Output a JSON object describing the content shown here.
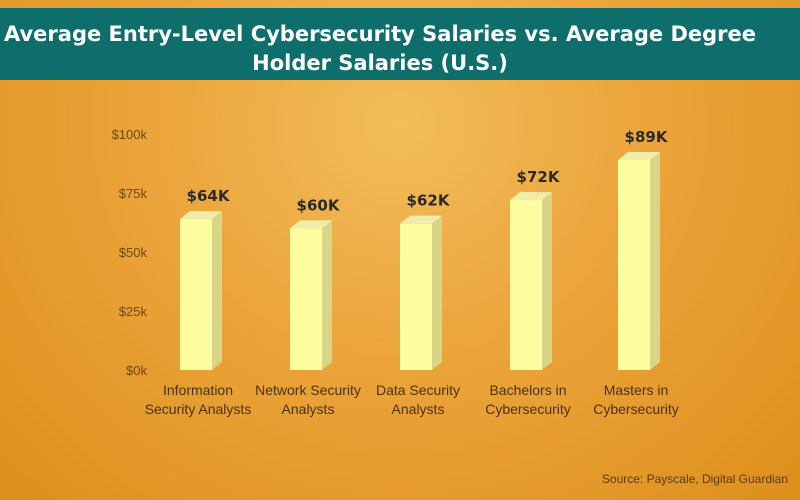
{
  "title_line1": "Average Entry-Level Cybersecurity Salaries vs. Average Degree",
  "title_line2": "Holder Salaries (U.S.)",
  "source": "Source: Payscale, Digital Guardian",
  "colors": {
    "title_bar": "#0e6e6c",
    "bar_front": "#fdfda0",
    "bar_side": "#d8d488",
    "bar_top": "#f0eda8"
  },
  "chart_data": {
    "type": "bar",
    "categories": [
      [
        "Information",
        "Security Analysts"
      ],
      [
        "Network Security",
        "Analysts"
      ],
      [
        "Data Security",
        "Analysts"
      ],
      [
        "Bachelors in",
        "Cybersecurity"
      ],
      [
        "Masters in",
        "Cybersecurity"
      ]
    ],
    "values": [
      64,
      60,
      62,
      72,
      89
    ],
    "data_labels": [
      "$64K",
      "$60K",
      "$62K",
      "$72K",
      "$89K"
    ],
    "yticks": [
      0,
      25,
      50,
      75,
      100
    ],
    "ytick_labels": [
      "$0k",
      "$25k",
      "$50k",
      "$75k",
      "$100k"
    ],
    "ylim": [
      0,
      100
    ],
    "grid": false,
    "bar_style": "3d-column"
  }
}
